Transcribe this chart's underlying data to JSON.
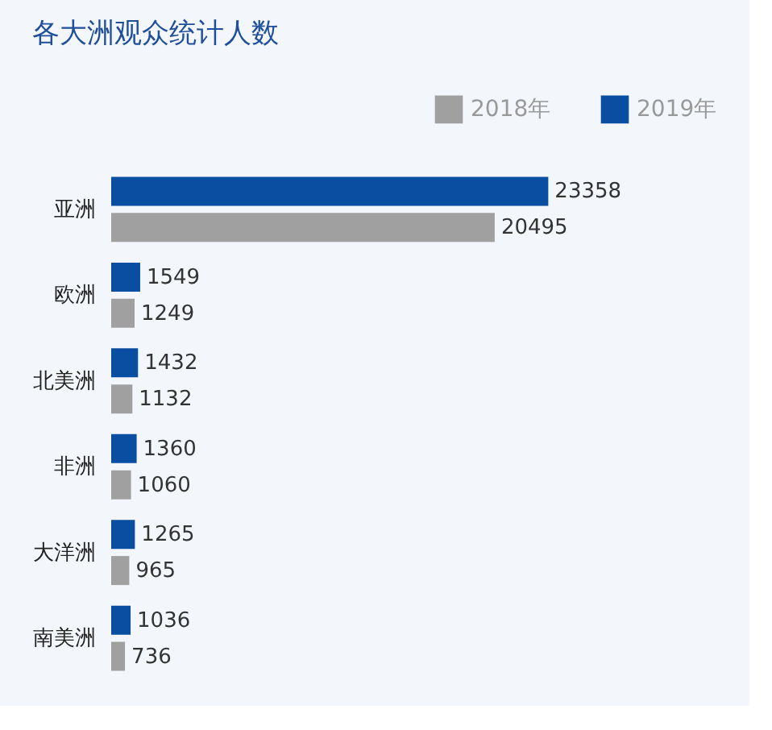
{
  "chart_data": {
    "type": "bar",
    "orientation": "horizontal",
    "title": "各大洲观众统计人数",
    "categories": [
      "亚洲",
      "欧洲",
      "北美洲",
      "非洲",
      "大洋洲",
      "南美洲"
    ],
    "series": [
      {
        "name": "2018年",
        "color": "#a0a0a0",
        "values": [
          20495,
          1249,
          1132,
          1060,
          965,
          736
        ]
      },
      {
        "name": "2019年",
        "color": "#0a4ea2",
        "values": [
          23358,
          1549,
          1432,
          1360,
          1265,
          1036
        ]
      }
    ],
    "data_labels": true,
    "legend": "top right"
  }
}
